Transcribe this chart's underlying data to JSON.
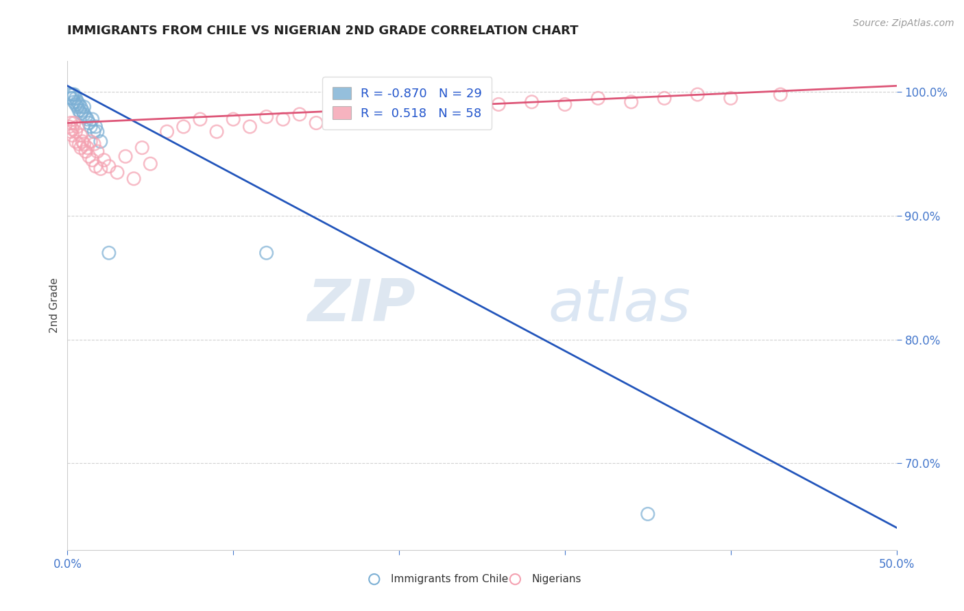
{
  "title": "IMMIGRANTS FROM CHILE VS NIGERIAN 2ND GRADE CORRELATION CHART",
  "source_text": "Source: ZipAtlas.com",
  "ylabel": "2nd Grade",
  "xlim": [
    0.0,
    0.5
  ],
  "ylim": [
    0.63,
    1.025
  ],
  "xticks": [
    0.0,
    0.1,
    0.2,
    0.3,
    0.4,
    0.5
  ],
  "xticklabels": [
    "0.0%",
    "",
    "",
    "",
    "",
    "50.0%"
  ],
  "yticks": [
    0.7,
    0.8,
    0.9,
    1.0
  ],
  "yticklabels": [
    "70.0%",
    "80.0%",
    "90.0%",
    "100.0%"
  ],
  "legend_R_chile": "-0.870",
  "legend_N_chile": "29",
  "legend_R_nigerian": "0.518",
  "legend_N_nigerian": "58",
  "chile_color": "#7bafd4",
  "nigerian_color": "#f4a0b0",
  "chile_line_color": "#2255bb",
  "nigerian_line_color": "#dd5577",
  "watermark_zip": "ZIP",
  "watermark_atlas": "atlas",
  "background_color": "#ffffff",
  "chile_line_x0": 0.0,
  "chile_line_y0": 1.005,
  "chile_line_x1": 0.5,
  "chile_line_y1": 0.648,
  "nig_line_x0": 0.0,
  "nig_line_y0": 0.975,
  "nig_line_x1": 0.5,
  "nig_line_y1": 1.005,
  "chile_points_x": [
    0.001,
    0.002,
    0.003,
    0.003,
    0.004,
    0.004,
    0.005,
    0.005,
    0.006,
    0.006,
    0.007,
    0.007,
    0.008,
    0.008,
    0.009,
    0.01,
    0.01,
    0.011,
    0.012,
    0.013,
    0.014,
    0.015,
    0.016,
    0.017,
    0.018,
    0.02,
    0.025,
    0.12,
    0.35
  ],
  "chile_points_y": [
    0.998,
    0.995,
    0.995,
    0.998,
    0.992,
    0.998,
    0.99,
    0.995,
    0.988,
    0.992,
    0.985,
    0.99,
    0.983,
    0.988,
    0.985,
    0.982,
    0.988,
    0.98,
    0.978,
    0.975,
    0.972,
    0.978,
    0.968,
    0.972,
    0.968,
    0.96,
    0.87,
    0.87,
    0.659
  ],
  "nigerian_points_x": [
    0.001,
    0.002,
    0.002,
    0.003,
    0.003,
    0.004,
    0.005,
    0.005,
    0.006,
    0.007,
    0.008,
    0.008,
    0.009,
    0.01,
    0.011,
    0.012,
    0.013,
    0.014,
    0.015,
    0.016,
    0.017,
    0.018,
    0.02,
    0.022,
    0.025,
    0.03,
    0.035,
    0.04,
    0.045,
    0.05,
    0.06,
    0.07,
    0.08,
    0.09,
    0.1,
    0.11,
    0.12,
    0.13,
    0.14,
    0.15,
    0.16,
    0.17,
    0.18,
    0.19,
    0.2,
    0.21,
    0.22,
    0.23,
    0.24,
    0.26,
    0.28,
    0.3,
    0.32,
    0.34,
    0.36,
    0.38,
    0.4,
    0.43
  ],
  "nigerian_points_y": [
    0.972,
    0.968,
    0.975,
    0.97,
    0.965,
    0.975,
    0.968,
    0.96,
    0.972,
    0.958,
    0.965,
    0.955,
    0.96,
    0.958,
    0.952,
    0.955,
    0.948,
    0.96,
    0.945,
    0.958,
    0.94,
    0.952,
    0.938,
    0.945,
    0.94,
    0.935,
    0.948,
    0.93,
    0.955,
    0.942,
    0.968,
    0.972,
    0.978,
    0.968,
    0.978,
    0.972,
    0.98,
    0.978,
    0.982,
    0.975,
    0.985,
    0.978,
    0.985,
    0.98,
    0.988,
    0.982,
    0.985,
    0.99,
    0.988,
    0.99,
    0.992,
    0.99,
    0.995,
    0.992,
    0.995,
    0.998,
    0.995,
    0.998
  ]
}
